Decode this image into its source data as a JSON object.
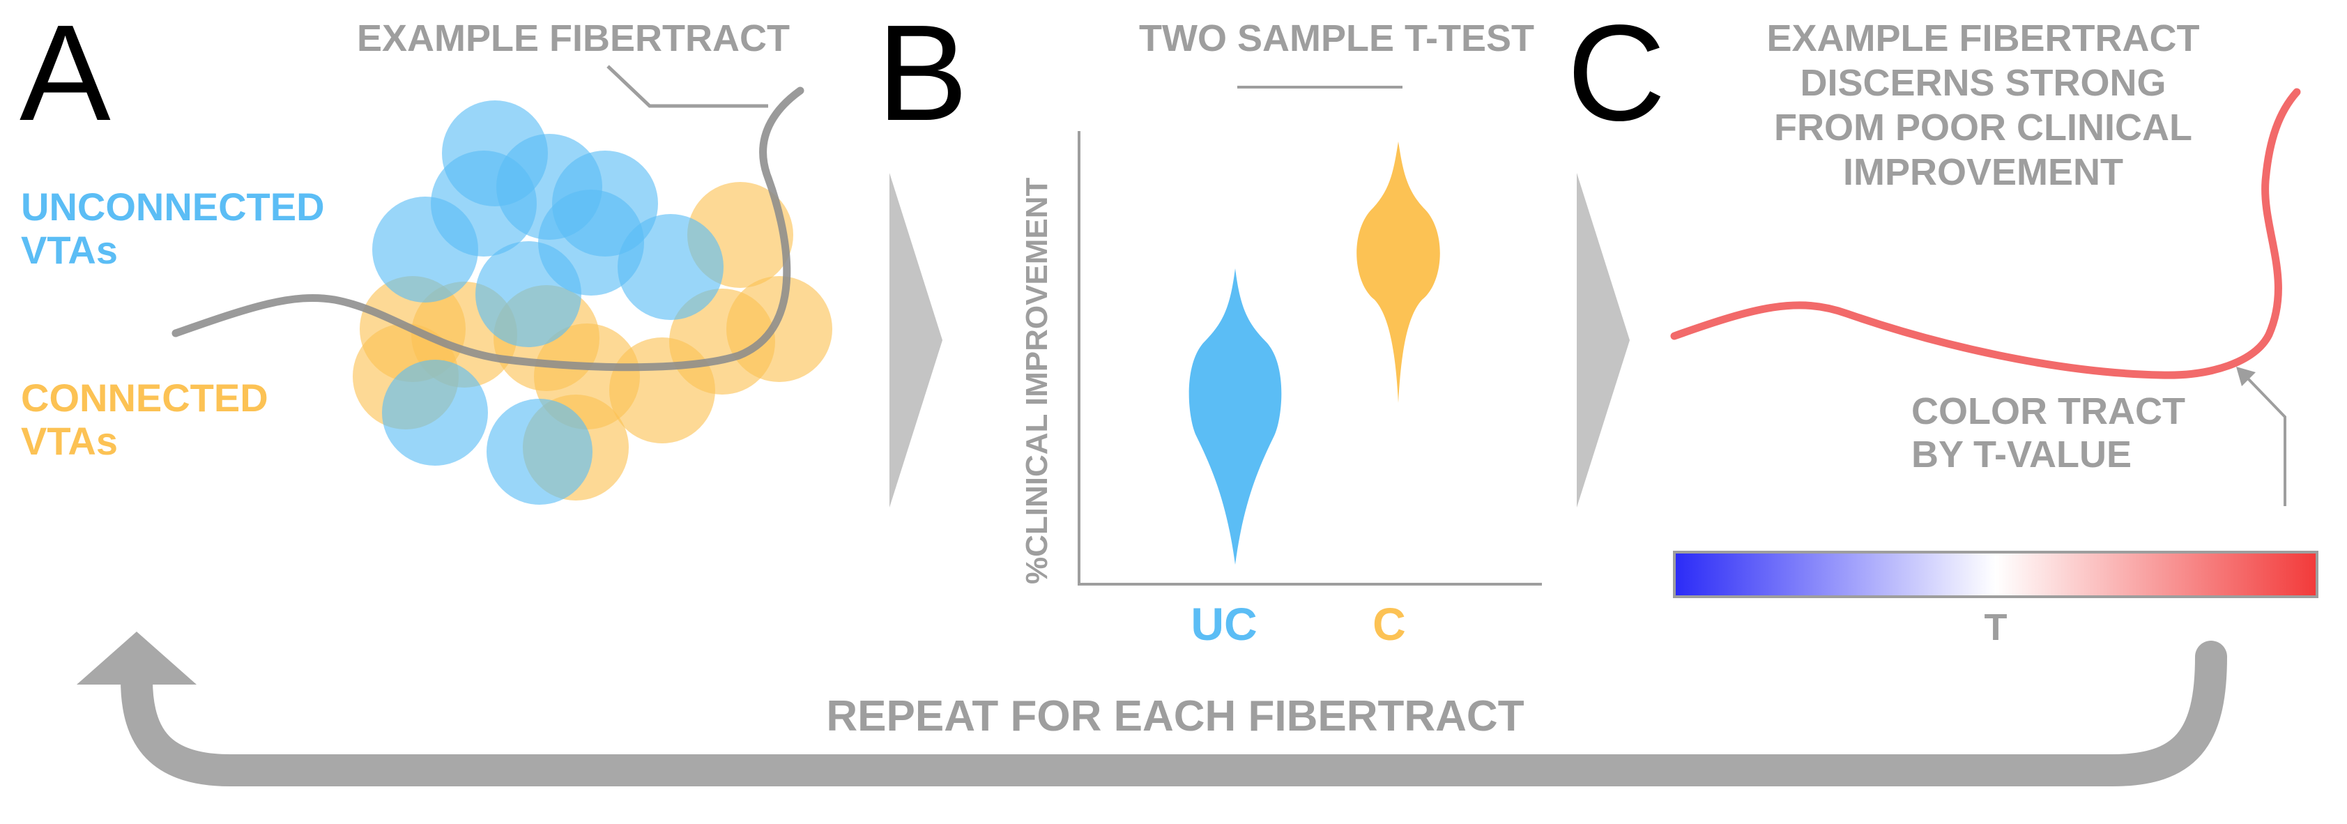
{
  "colors": {
    "unconnected": "#5bbdf5",
    "connected": "#fcc254",
    "gray": "#9e9e9e",
    "tract_gray": "#8c8c8c",
    "tract_red": "#f26a6a",
    "arrow_gray": "#a8a8a8",
    "colorbar_low": "#2b2bf7",
    "colorbar_mid": "#ffffff",
    "colorbar_high": "#f23a3a"
  },
  "panel_a": {
    "letter": "A",
    "example_fibertract_label": "EXAMPLE FIBERTRACT",
    "unconnected_label_line1": "UNCONNECTED",
    "unconnected_label_line2": "VTAs",
    "connected_label_line1": "CONNECTED",
    "connected_label_line2": "VTAs"
  },
  "panel_b": {
    "letter": "B",
    "title": "TWO SAMPLE T-TEST",
    "y_axis_label": "%CLINICAL IMPROVEMENT",
    "group_uc": "UC",
    "group_c": "C"
  },
  "panel_c": {
    "letter": "C",
    "title_line1": "EXAMPLE FIBERTRACT",
    "title_line2": "DISCERNS STRONG",
    "title_line3": "FROM POOR CLINICAL",
    "title_line4": "IMPROVEMENT",
    "color_tract_line1": "COLOR TRACT",
    "color_tract_line2": "BY T-VALUE",
    "colorbar_label": "T"
  },
  "footer": {
    "repeat_label": "REPEAT FOR EACH FIBERTRACT"
  }
}
